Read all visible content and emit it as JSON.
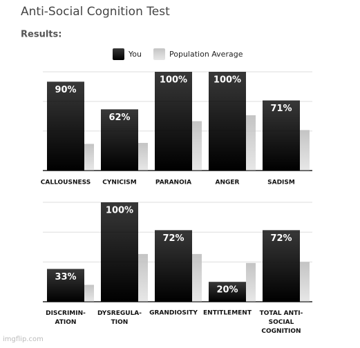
{
  "title": "Anti-Social Cognition Test",
  "subtitle": "Results:",
  "watermark": "imgflip.com",
  "chart_data": [
    {
      "type": "bar",
      "categories": [
        "CALLOUSNESS",
        "CYNICISM",
        "PARANOIA",
        "ANGER",
        "SADISM"
      ],
      "series": [
        {
          "name": "You",
          "color": "#000000",
          "values": [
            90,
            62,
            100,
            100,
            71
          ],
          "value_labels": [
            "90%",
            "62%",
            "100%",
            "100%",
            "71%"
          ]
        },
        {
          "name": "Population Average",
          "color": "#c4c4c4",
          "values": [
            27,
            28,
            50,
            56,
            41
          ]
        }
      ],
      "ylim": [
        0,
        100
      ],
      "yticks": [
        0,
        40,
        70,
        100
      ],
      "grid": true
    },
    {
      "type": "bar",
      "categories": [
        "DISCRIMIN-\nATION",
        "DYSREGULA-\nTION",
        "GRANDIOSITY",
        "ENTITLEMENT",
        "TOTAL ANTI-\nSOCIAL\nCOGNITION"
      ],
      "series": [
        {
          "name": "You",
          "color": "#000000",
          "values": [
            33,
            100,
            72,
            20,
            72
          ],
          "value_labels": [
            "33%",
            "100%",
            "72%",
            "20%",
            "72%"
          ]
        },
        {
          "name": "Population Average",
          "color": "#c4c4c4",
          "values": [
            17,
            48,
            48,
            39,
            40
          ]
        }
      ],
      "ylim": [
        0,
        100
      ],
      "yticks": [
        0,
        40,
        70,
        100
      ],
      "grid": true
    }
  ]
}
